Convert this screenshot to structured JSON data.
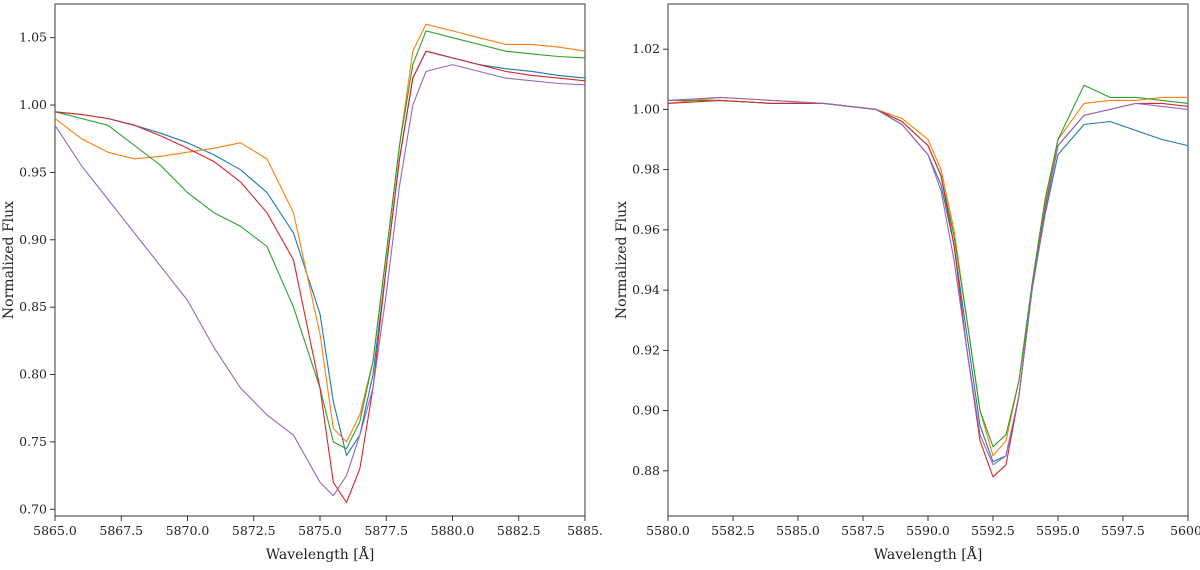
{
  "chart_data": [
    {
      "type": "line",
      "xlabel": "Wavelength [Å]",
      "ylabel": "Normalized Flux",
      "xlim": [
        5865.0,
        5885.0
      ],
      "ylim": [
        0.695,
        1.075
      ],
      "xticks": [
        "5865.0",
        "5867.5",
        "5870.0",
        "5872.5",
        "5875.0",
        "5877.5",
        "5880.0",
        "5882.5",
        "5885."
      ],
      "yticks": [
        "0.70",
        "0.75",
        "0.80",
        "0.85",
        "0.90",
        "0.95",
        "1.00",
        "1.05"
      ],
      "grid": false,
      "series": [
        {
          "color": "#1f77b4",
          "x": [
            5865,
            5866,
            5867,
            5868,
            5869,
            5870,
            5871,
            5872,
            5873,
            5874,
            5875,
            5875.5,
            5876,
            5876.5,
            5877,
            5877.5,
            5878,
            5878.5,
            5879,
            5880,
            5881,
            5882,
            5883,
            5884,
            5885
          ],
          "y": [
            0.995,
            0.993,
            0.99,
            0.985,
            0.979,
            0.972,
            0.963,
            0.952,
            0.935,
            0.905,
            0.845,
            0.78,
            0.74,
            0.755,
            0.8,
            0.88,
            0.96,
            1.02,
            1.04,
            1.035,
            1.03,
            1.027,
            1.025,
            1.022,
            1.02
          ]
        },
        {
          "color": "#ff7f0e",
          "x": [
            5865,
            5866,
            5867,
            5868,
            5869,
            5870,
            5871,
            5872,
            5873,
            5874,
            5875,
            5875.5,
            5876,
            5876.5,
            5877,
            5877.5,
            5878,
            5878.5,
            5879,
            5880,
            5881,
            5882,
            5883,
            5884,
            5885
          ],
          "y": [
            0.99,
            0.975,
            0.965,
            0.96,
            0.962,
            0.965,
            0.968,
            0.972,
            0.96,
            0.92,
            0.83,
            0.76,
            0.75,
            0.77,
            0.81,
            0.89,
            0.97,
            1.04,
            1.06,
            1.055,
            1.05,
            1.045,
            1.045,
            1.043,
            1.04
          ]
        },
        {
          "color": "#2ca02c",
          "x": [
            5865,
            5866,
            5867,
            5868,
            5869,
            5870,
            5871,
            5872,
            5873,
            5874,
            5875,
            5875.5,
            5876,
            5876.5,
            5877,
            5877.5,
            5878,
            5878.5,
            5879,
            5880,
            5881,
            5882,
            5883,
            5884,
            5885
          ],
          "y": [
            0.995,
            0.99,
            0.985,
            0.97,
            0.955,
            0.935,
            0.92,
            0.91,
            0.895,
            0.85,
            0.79,
            0.75,
            0.745,
            0.765,
            0.81,
            0.89,
            0.97,
            1.03,
            1.055,
            1.05,
            1.045,
            1.04,
            1.038,
            1.036,
            1.035
          ]
        },
        {
          "color": "#d62728",
          "x": [
            5865,
            5866,
            5867,
            5868,
            5869,
            5870,
            5871,
            5872,
            5873,
            5874,
            5875,
            5875.5,
            5876,
            5876.5,
            5877,
            5877.5,
            5878,
            5878.5,
            5879,
            5880,
            5881,
            5882,
            5883,
            5884,
            5885
          ],
          "y": [
            0.995,
            0.993,
            0.99,
            0.985,
            0.977,
            0.968,
            0.958,
            0.943,
            0.92,
            0.885,
            0.79,
            0.72,
            0.705,
            0.73,
            0.79,
            0.88,
            0.96,
            1.02,
            1.04,
            1.035,
            1.03,
            1.025,
            1.022,
            1.02,
            1.018
          ]
        },
        {
          "color": "#9467bd",
          "x": [
            5865,
            5866,
            5867,
            5868,
            5869,
            5870,
            5871,
            5872,
            5873,
            5874,
            5875,
            5875.5,
            5876,
            5876.5,
            5877,
            5877.5,
            5878,
            5878.5,
            5879,
            5880,
            5881,
            5882,
            5883,
            5884,
            5885
          ],
          "y": [
            0.985,
            0.955,
            0.93,
            0.905,
            0.88,
            0.855,
            0.82,
            0.79,
            0.77,
            0.755,
            0.72,
            0.71,
            0.725,
            0.755,
            0.79,
            0.86,
            0.94,
            1.0,
            1.025,
            1.03,
            1.025,
            1.02,
            1.018,
            1.016,
            1.015
          ]
        }
      ]
    },
    {
      "type": "line",
      "xlabel": "Wavelength [Å]",
      "ylabel": "Normalized Flux",
      "xlim": [
        5580.0,
        5600.0
      ],
      "ylim": [
        0.865,
        1.035
      ],
      "xticks": [
        "5580.0",
        "5582.5",
        "5585.0",
        "5587.5",
        "5590.0",
        "5592.5",
        "5595.0",
        "5597.5",
        "5600."
      ],
      "yticks": [
        "0.88",
        "0.90",
        "0.92",
        "0.94",
        "0.96",
        "0.98",
        "1.00",
        "1.02"
      ],
      "grid": false,
      "series": [
        {
          "color": "#1f77b4",
          "x": [
            5580,
            5582,
            5584,
            5586,
            5588,
            5589,
            5590,
            5590.5,
            5591,
            5591.5,
            5592,
            5592.5,
            5593,
            5593.5,
            5594,
            5594.5,
            5595,
            5596,
            5597,
            5598,
            5599,
            5600
          ],
          "y": [
            1.003,
            1.003,
            1.002,
            1.002,
            1.0,
            0.995,
            0.985,
            0.975,
            0.955,
            0.925,
            0.895,
            0.883,
            0.885,
            0.905,
            0.94,
            0.965,
            0.985,
            0.995,
            0.996,
            0.993,
            0.99,
            0.988
          ]
        },
        {
          "color": "#ff7f0e",
          "x": [
            5580,
            5582,
            5584,
            5586,
            5588,
            5589,
            5590,
            5590.5,
            5591,
            5591.5,
            5592,
            5592.5,
            5593,
            5593.5,
            5594,
            5594.5,
            5595,
            5596,
            5597,
            5598,
            5599,
            5600
          ],
          "y": [
            1.002,
            1.004,
            1.003,
            1.002,
            1.0,
            0.997,
            0.99,
            0.98,
            0.96,
            0.93,
            0.9,
            0.885,
            0.89,
            0.91,
            0.94,
            0.968,
            0.99,
            1.002,
            1.003,
            1.003,
            1.004,
            1.004
          ]
        },
        {
          "color": "#2ca02c",
          "x": [
            5580,
            5582,
            5584,
            5586,
            5588,
            5589,
            5590,
            5590.5,
            5591,
            5591.5,
            5592,
            5592.5,
            5593,
            5593.5,
            5594,
            5594.5,
            5595,
            5596,
            5597,
            5598,
            5599,
            5600
          ],
          "y": [
            1.003,
            1.003,
            1.002,
            1.002,
            1.0,
            0.996,
            0.988,
            0.978,
            0.958,
            0.93,
            0.9,
            0.888,
            0.892,
            0.91,
            0.942,
            0.97,
            0.99,
            1.008,
            1.004,
            1.004,
            1.003,
            1.002
          ]
        },
        {
          "color": "#d62728",
          "x": [
            5580,
            5582,
            5584,
            5586,
            5588,
            5589,
            5590,
            5590.5,
            5591,
            5591.5,
            5592,
            5592.5,
            5593,
            5593.5,
            5594,
            5594.5,
            5595,
            5596,
            5597,
            5598,
            5599,
            5600
          ],
          "y": [
            1.002,
            1.003,
            1.002,
            1.002,
            1.0,
            0.996,
            0.988,
            0.978,
            0.955,
            0.92,
            0.89,
            0.878,
            0.882,
            0.905,
            0.94,
            0.967,
            0.988,
            0.998,
            1.0,
            1.002,
            1.002,
            1.001
          ]
        },
        {
          "color": "#9467bd",
          "x": [
            5580,
            5582,
            5584,
            5586,
            5588,
            5589,
            5590,
            5590.5,
            5591,
            5591.5,
            5592,
            5592.5,
            5593,
            5593.5,
            5594,
            5594.5,
            5595,
            5596,
            5597,
            5598,
            5599,
            5600
          ],
          "y": [
            1.003,
            1.004,
            1.003,
            1.002,
            1.0,
            0.995,
            0.985,
            0.973,
            0.95,
            0.92,
            0.892,
            0.882,
            0.885,
            0.905,
            0.94,
            0.966,
            0.988,
            0.998,
            1.0,
            1.002,
            1.001,
            1.0
          ]
        }
      ]
    }
  ]
}
